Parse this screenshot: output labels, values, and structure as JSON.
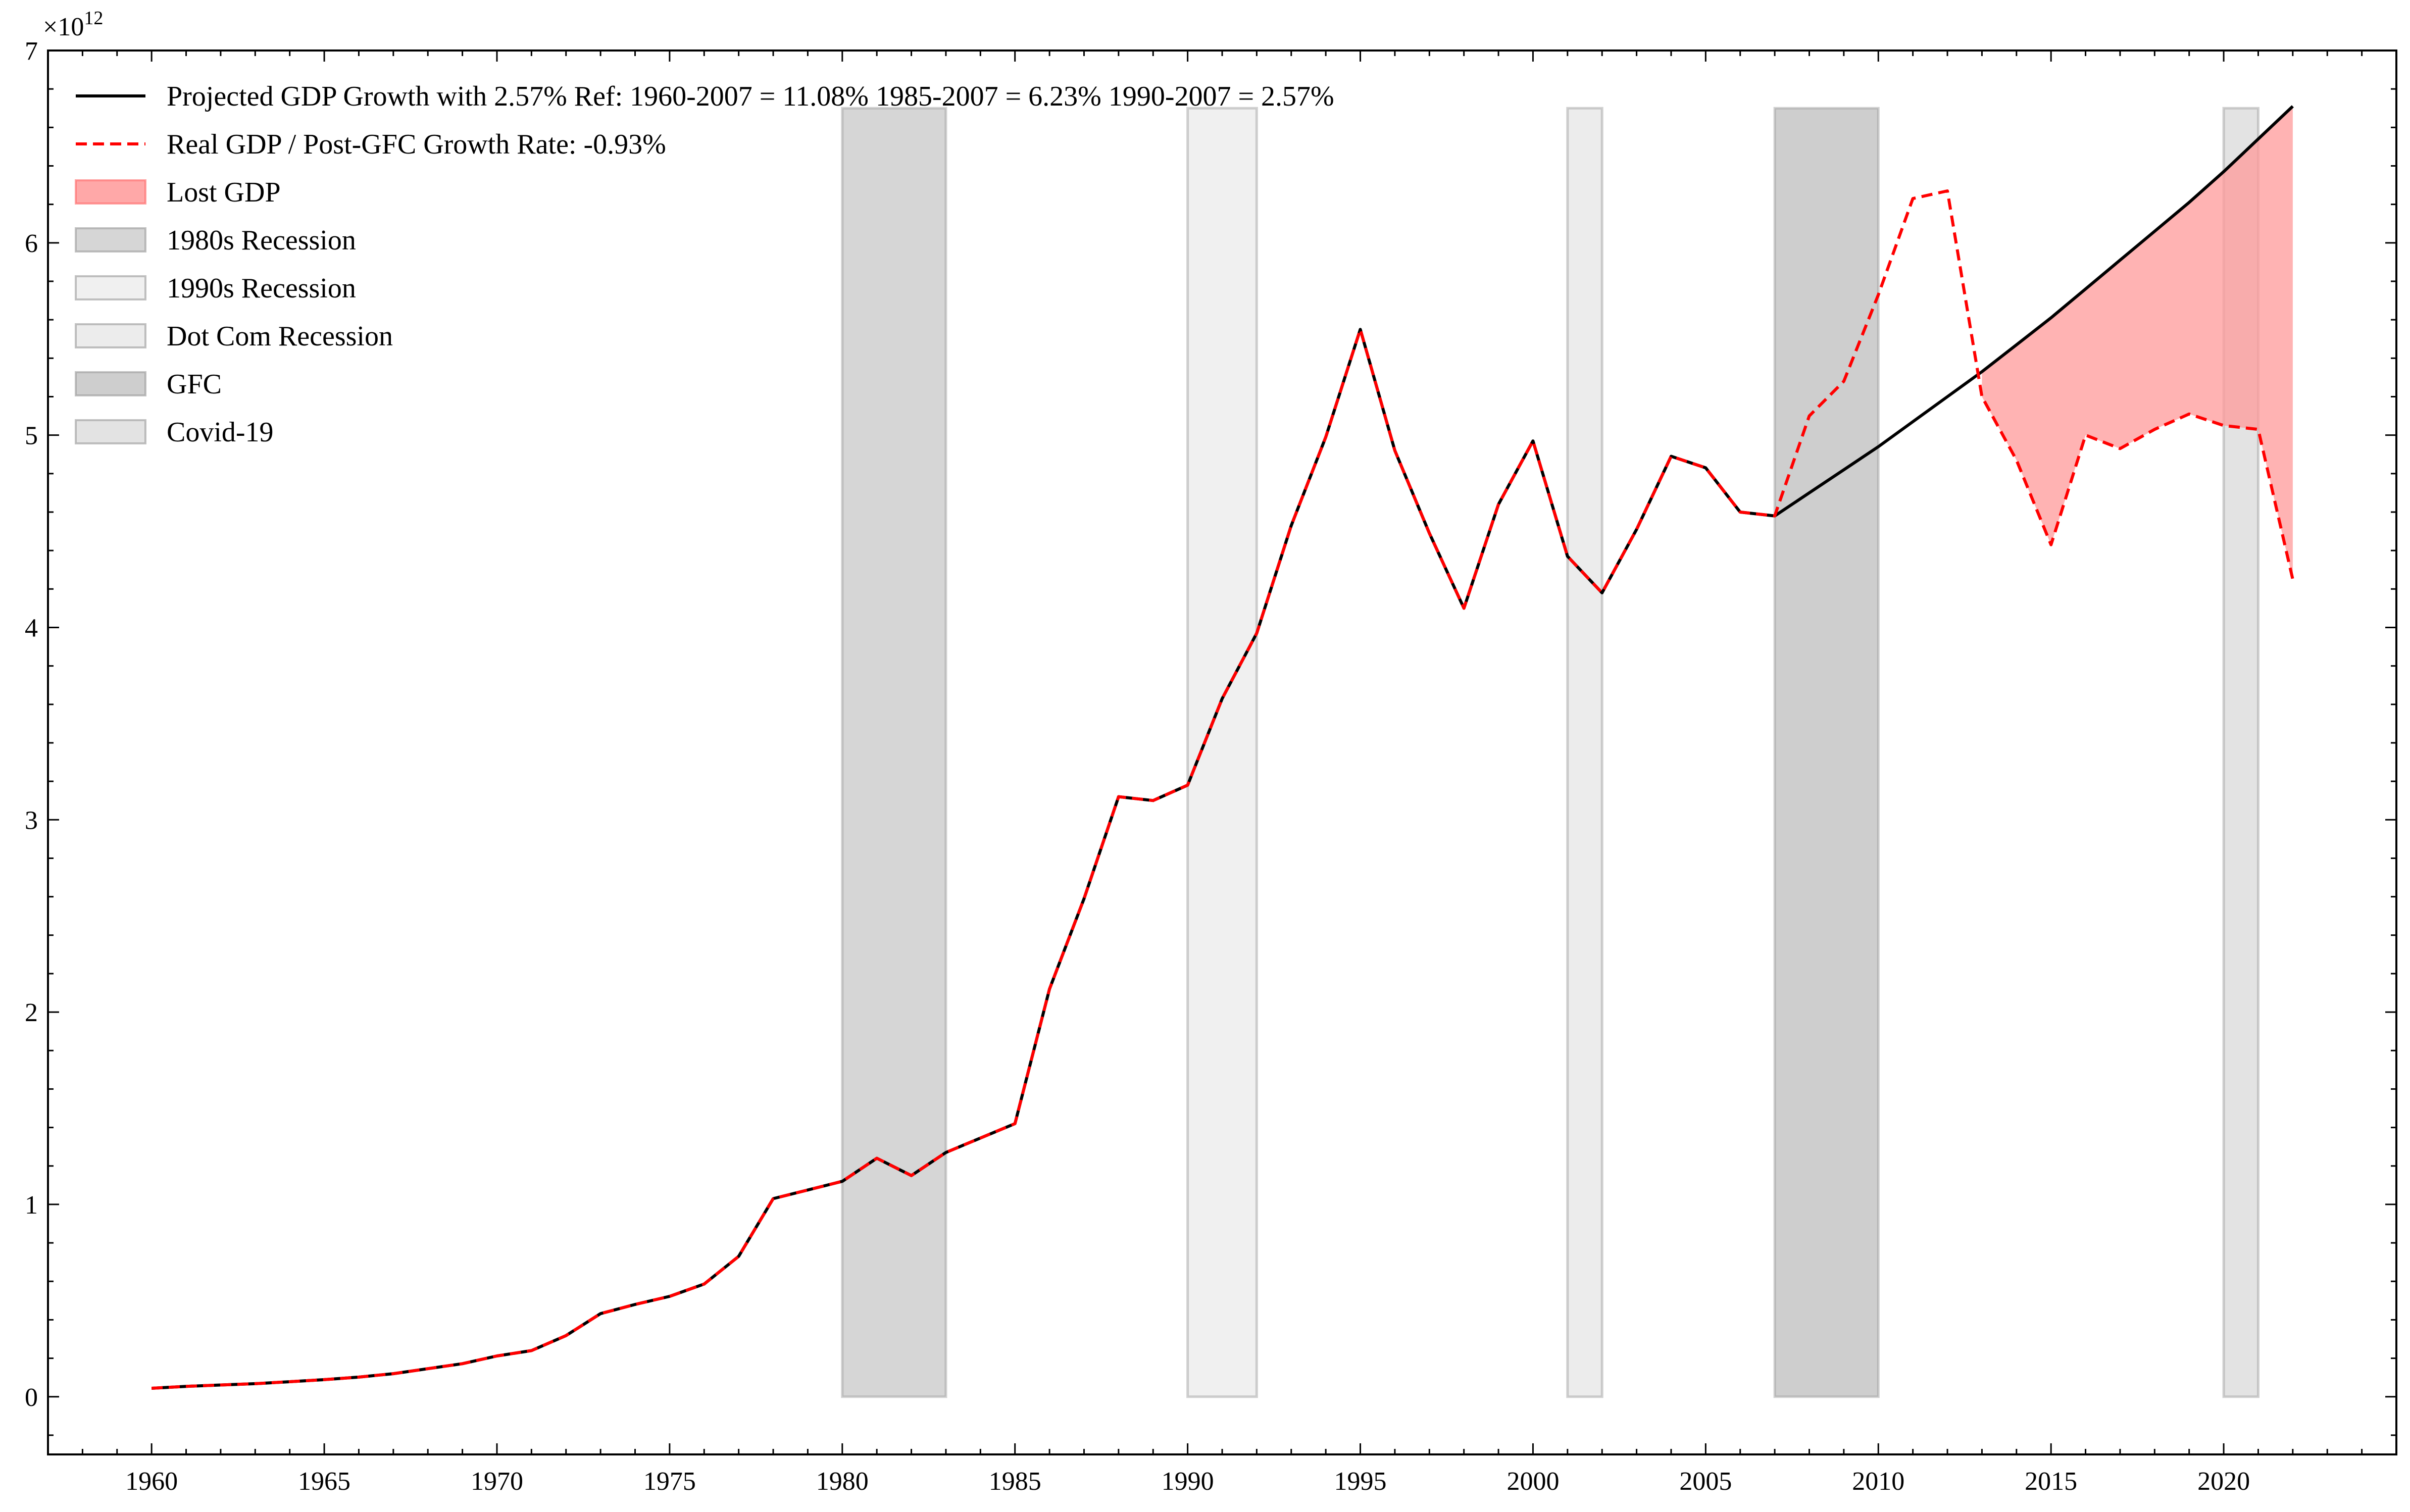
{
  "chart_data": {
    "type": "line",
    "x_unit_label": "year",
    "xlim": [
      1957,
      2025
    ],
    "ylim": [
      -0.3,
      7.0
    ],
    "y_scale_label": "×10",
    "y_scale_exponent": "12",
    "x_ticks": [
      1960,
      1965,
      1970,
      1975,
      1980,
      1985,
      1990,
      1995,
      2000,
      2005,
      2010,
      2015,
      2020
    ],
    "y_ticks": [
      0,
      1,
      2,
      3,
      4,
      5,
      6,
      7
    ],
    "grid": false,
    "legend_position": "top-left",
    "series": [
      {
        "name": "Projected GDP Growth with 2.57% Ref: 1960-2007 = 11.08% 1985-2007 = 6.23% 1990-2007 = 2.57%",
        "style": "solid",
        "color": "#000000",
        "x": [
          1960,
          1961,
          1962,
          1963,
          1964,
          1965,
          1966,
          1967,
          1968,
          1969,
          1970,
          1971,
          1972,
          1973,
          1974,
          1975,
          1976,
          1977,
          1978,
          1979,
          1980,
          1981,
          1982,
          1983,
          1984,
          1985,
          1986,
          1987,
          1988,
          1989,
          1990,
          1991,
          1992,
          1993,
          1994,
          1995,
          1996,
          1997,
          1998,
          1999,
          2000,
          2001,
          2002,
          2003,
          2004,
          2005,
          2006,
          2007,
          2008,
          2009,
          2010,
          2011,
          2012,
          2013,
          2014,
          2015,
          2016,
          2017,
          2018,
          2019,
          2020,
          2021,
          2022
        ],
        "values": [
          0.044,
          0.054,
          0.061,
          0.068,
          0.078,
          0.089,
          0.102,
          0.12,
          0.146,
          0.172,
          0.212,
          0.24,
          0.318,
          0.432,
          0.48,
          0.522,
          0.586,
          0.73,
          1.03,
          1.075,
          1.12,
          1.24,
          1.15,
          1.27,
          1.345,
          1.42,
          2.12,
          2.59,
          3.12,
          3.1,
          3.18,
          3.63,
          3.97,
          4.53,
          4.99,
          5.55,
          4.92,
          4.49,
          4.1,
          4.64,
          4.97,
          4.37,
          4.18,
          4.51,
          4.89,
          4.83,
          4.6,
          4.58,
          4.7,
          4.82,
          4.94,
          5.07,
          5.2,
          5.33,
          5.47,
          5.61,
          5.76,
          5.91,
          6.06,
          6.21,
          6.37,
          6.54,
          6.71
        ]
      },
      {
        "name": "Real GDP / Post-GFC Growth Rate: -0.93%",
        "style": "dashed",
        "color": "#ff0000",
        "x": [
          1960,
          1961,
          1962,
          1963,
          1964,
          1965,
          1966,
          1967,
          1968,
          1969,
          1970,
          1971,
          1972,
          1973,
          1974,
          1975,
          1976,
          1977,
          1978,
          1979,
          1980,
          1981,
          1982,
          1983,
          1984,
          1985,
          1986,
          1987,
          1988,
          1989,
          1990,
          1991,
          1992,
          1993,
          1994,
          1995,
          1996,
          1997,
          1998,
          1999,
          2000,
          2001,
          2002,
          2003,
          2004,
          2005,
          2006,
          2007,
          2008,
          2009,
          2010,
          2011,
          2012,
          2013,
          2014,
          2015,
          2016,
          2017,
          2018,
          2019,
          2020,
          2021,
          2022
        ],
        "values": [
          0.044,
          0.054,
          0.061,
          0.068,
          0.078,
          0.089,
          0.102,
          0.12,
          0.146,
          0.172,
          0.212,
          0.24,
          0.318,
          0.432,
          0.48,
          0.522,
          0.586,
          0.73,
          1.03,
          1.075,
          1.12,
          1.24,
          1.15,
          1.27,
          1.345,
          1.42,
          2.12,
          2.59,
          3.12,
          3.1,
          3.18,
          3.63,
          3.97,
          4.53,
          4.99,
          5.55,
          4.92,
          4.49,
          4.1,
          4.64,
          4.97,
          4.37,
          4.18,
          4.51,
          4.89,
          4.83,
          4.6,
          4.58,
          5.1,
          5.28,
          5.73,
          6.23,
          6.27,
          5.2,
          4.87,
          4.43,
          5.0,
          4.93,
          5.03,
          5.11,
          5.05,
          5.03,
          4.25
        ]
      }
    ],
    "fill_between": {
      "name": "Lost GDP",
      "color": "#ff9999",
      "x_start": 2013,
      "x_end": 2022
    },
    "spans": [
      {
        "name": "1980s Recession",
        "x_start": 1980,
        "x_end": 1983,
        "y_top": 6.7,
        "color": "#c8c8c8",
        "opacity": 0.75
      },
      {
        "name": "1990s Recession",
        "x_start": 1990,
        "x_end": 1992,
        "y_top": 6.7,
        "color": "#e4e4e4",
        "opacity": 0.55
      },
      {
        "name": "Dot Com Recession",
        "x_start": 2001,
        "x_end": 2002,
        "y_top": 6.7,
        "color": "#e0e0e0",
        "opacity": 0.6
      },
      {
        "name": "GFC",
        "x_start": 2007,
        "x_end": 2010,
        "y_top": 6.7,
        "color": "#b4b4b4",
        "opacity": 0.65
      },
      {
        "name": "Covid-19",
        "x_start": 2020,
        "x_end": 2021,
        "y_top": 6.7,
        "color": "#d0d0d0",
        "opacity": 0.6
      }
    ]
  }
}
